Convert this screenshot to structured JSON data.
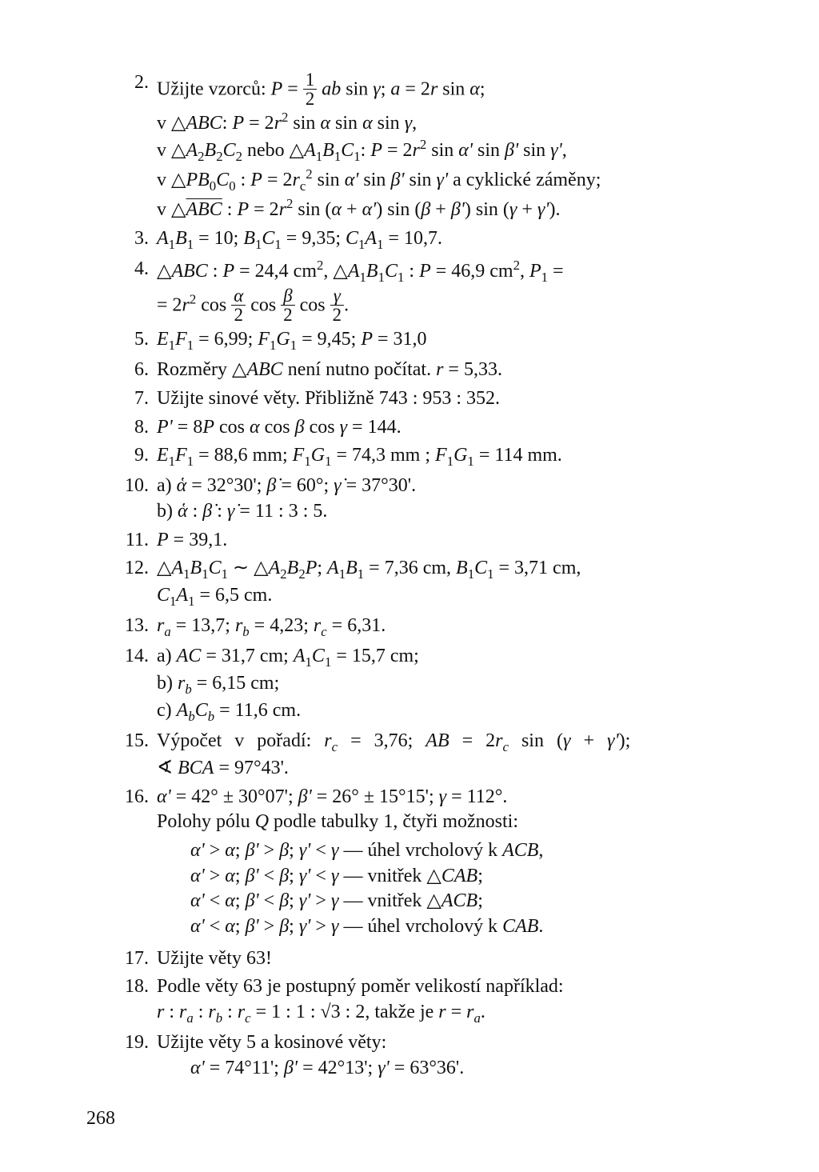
{
  "page_number": "268",
  "items": [
    {
      "n": "2.",
      "lines": [
        "Užijte vzorců: <i>P</i> = <span class='frac'><span class='top'>1</span><span class='bot'>2</span></span> <i>ab</i> sin <i>γ</i>; <i>a</i> = 2<i>r</i> sin <i>α</i>;",
        "v △<i>ABC</i>: <i>P</i> = 2<i>r</i><sup>2</sup> sin <i>α</i> sin <i>α</i> sin <i>γ</i>,",
        "v △<i>A</i><sub>2</sub><i>B</i><sub>2</sub><i>C</i><sub>2</sub> nebo △<i>A</i><sub>1</sub><i>B</i><sub>1</sub><i>C</i><sub>1</sub>: <i>P</i> = 2<i>r</i><sup>2</sup> sin <i>α'</i> sin <i>β'</i> sin <i>γ'</i>,",
        "v △<i>PB</i><sub>0</sub><i>C</i><sub>0</sub> : <i>P</i> = 2<i>r</i><sub>c</sub><sup>2</sup> sin <i>α'</i> sin <i>β'</i> sin <i>γ'</i> a cyklické záměny;",
        "v △<span class='overbar'><i>ABC</i></span> :  <i>P</i> = 2<i>r</i><sup>2</sup> sin (<i>α</i> + <i>α'</i>) sin (<i>β</i> + <i>β'</i>) sin (<i>γ</i> + <i>γ'</i>)."
      ]
    },
    {
      "n": "3.",
      "lines": [
        "<i>A</i><sub>1</sub><i>B</i><sub>1</sub> = 10; <i>B</i><sub>1</sub><i>C</i><sub>1</sub> = 9,35; <i>C</i><sub>1</sub><i>A</i><sub>1</sub> = 10,7."
      ]
    },
    {
      "n": "4.",
      "lines": [
        "△<i>ABC</i> : <i>P</i> = 24,4 cm<sup>2</sup>, △<i>A</i><sub>1</sub><i>B</i><sub>1</sub><i>C</i><sub>1</sub> : <i>P</i> = 46,9 cm<sup>2</sup>, <i>P</i><sub>1</sub> =",
        "= 2<i>r</i><sup>2</sup> cos <span class='frac'><span class='top'><i>α</i></span><span class='bot'>2</span></span> cos <span class='frac'><span class='top'><i>β</i></span><span class='bot'>2</span></span> cos <span class='frac'><span class='top'><i>γ</i></span><span class='bot'>2</span></span>."
      ]
    },
    {
      "n": "5.",
      "lines": [
        "<i>E</i><sub>1</sub><i>F</i><sub>1</sub> = 6,99; <i>F</i><sub>1</sub><i>G</i><sub>1</sub> = 9,45; <i>P</i> = 31,0"
      ]
    },
    {
      "n": "6.",
      "lines": [
        "Rozměry △<i>ABC</i> není nutno počítat. <i>r</i> = 5,33."
      ]
    },
    {
      "n": "7.",
      "lines": [
        "Užijte sinové věty. Přibližně 743 : 953 : 352."
      ]
    },
    {
      "n": "8.",
      "lines": [
        "<i>P'</i> = 8<i>P</i> cos <i>α</i> cos <i>β</i> cos <i>γ</i> = 144."
      ]
    },
    {
      "n": "9.",
      "lines": [
        "<i>E</i><sub>1</sub><i>F</i><sub>1</sub> = 88,6 mm; <i>F</i><sub>1</sub><i>G</i><sub>1</sub> = 74,3 mm ; <i>F</i><sub>1</sub><i>G</i><sub>1</sub> = 114 mm."
      ]
    },
    {
      "n": "10.",
      "lines": [
        "a) <i>ἁ</i> = 32°30'; <i>β̇</i> = 60°; <i>γ̇</i> = 37°30'.",
        "b) <i>ἁ</i> : <i>β̇</i> : <i>γ̇</i> = 11 : 3 : 5."
      ]
    },
    {
      "n": "11.",
      "lines": [
        "<i>P</i> = 39,1."
      ]
    },
    {
      "n": "12.",
      "lines": [
        "△<i>A</i><sub>1</sub><i>B</i><sub>1</sub><i>C</i><sub>1</sub> ∼ △<i>A</i><sub>2</sub><i>B</i><sub>2</sub><i>P</i>; <i>A</i><sub>1</sub><i>B</i><sub>1</sub> = 7,36 cm, <i>B</i><sub>1</sub><i>C</i><sub>1</sub> = 3,71 cm,",
        "<i>C</i><sub>1</sub><i>A</i><sub>1</sub> = 6,5 cm."
      ]
    },
    {
      "n": "13.",
      "lines": [
        "<i>r<sub>a</sub></i> = 13,7; <i>r<sub>b</sub></i> = 4,23; <i>r<sub>c</sub></i> = 6,31."
      ]
    },
    {
      "n": "14.",
      "lines": [
        "a) <i>AC</i> = 31,7 cm; <i>A</i><sub>1</sub><i>C</i><sub>1</sub> = 15,7 cm;",
        "b) <i>r<sub>b</sub></i> = 6,15 cm;",
        "c) <i>A<sub>b</sub>C<sub>b</sub></i> = 11,6 cm."
      ]
    },
    {
      "n": "15.",
      "lines": [
        "<span class='just'>Výpočet v pořadí: <i>r<sub>c</sub></i> = 3,76; <i>AB</i> = 2<i>r<sub>c</sub></i> sin (<i>γ</i> + <i>γ'</i>);</span>",
        "∢ <i>BCA</i> = 97°43'."
      ]
    },
    {
      "n": "16.",
      "lines": [
        "<i>α'</i> = 42° ± 30°07'; <i>β'</i> = 26° ± 15°15'; <i>γ</i> = 112°.",
        "Polohy pólu <i>Q</i> podle tabulky 1, čtyři možnosti:"
      ],
      "cases": [
        "<i>α'</i> &gt; <i>α</i>; <i>β'</i> &gt; <i>β</i>; <i>γ'</i> &lt; <i>γ</i> — úhel vrcholový k <i>ACB</i>,",
        "<i>α'</i> &gt; <i>α</i>; <i>β'</i> &lt; <i>β</i>; <i>γ'</i> &lt; <i>γ</i> — vnitřek △<i>CAB</i>;",
        "<i>α'</i> &lt; <i>α</i>; <i>β'</i> &lt; <i>β</i>; <i>γ'</i> &gt; <i>γ</i> — vnitřek △<i>ACB</i>;",
        "<i>α'</i> &lt; <i>α</i>; <i>β'</i> &gt; <i>β</i>; <i>γ'</i> &gt; <i>γ</i> — úhel vrcholový k <i>CAB</i>."
      ]
    },
    {
      "n": "17.",
      "lines": [
        "Užijte věty 63!"
      ]
    },
    {
      "n": "18.",
      "lines": [
        "Podle věty 63 je postupný poměr velikostí například:",
        "<i>r</i> : <i>r<sub>a</sub></i> : <i>r<sub>b</sub></i> : <i>r<sub>c</sub></i> = 1 : 1 : √3 : 2, takže je <i>r</i> = <i>r<sub>a</sub></i>."
      ]
    },
    {
      "n": "19.",
      "lines": [
        "Užijte věty 5 a kosinové věty:",
        "<i>α'</i> = 74°11'; <i>β'</i> = 42°13'; <i>γ'</i> = 63°36'."
      ],
      "cases_indent": true
    }
  ]
}
